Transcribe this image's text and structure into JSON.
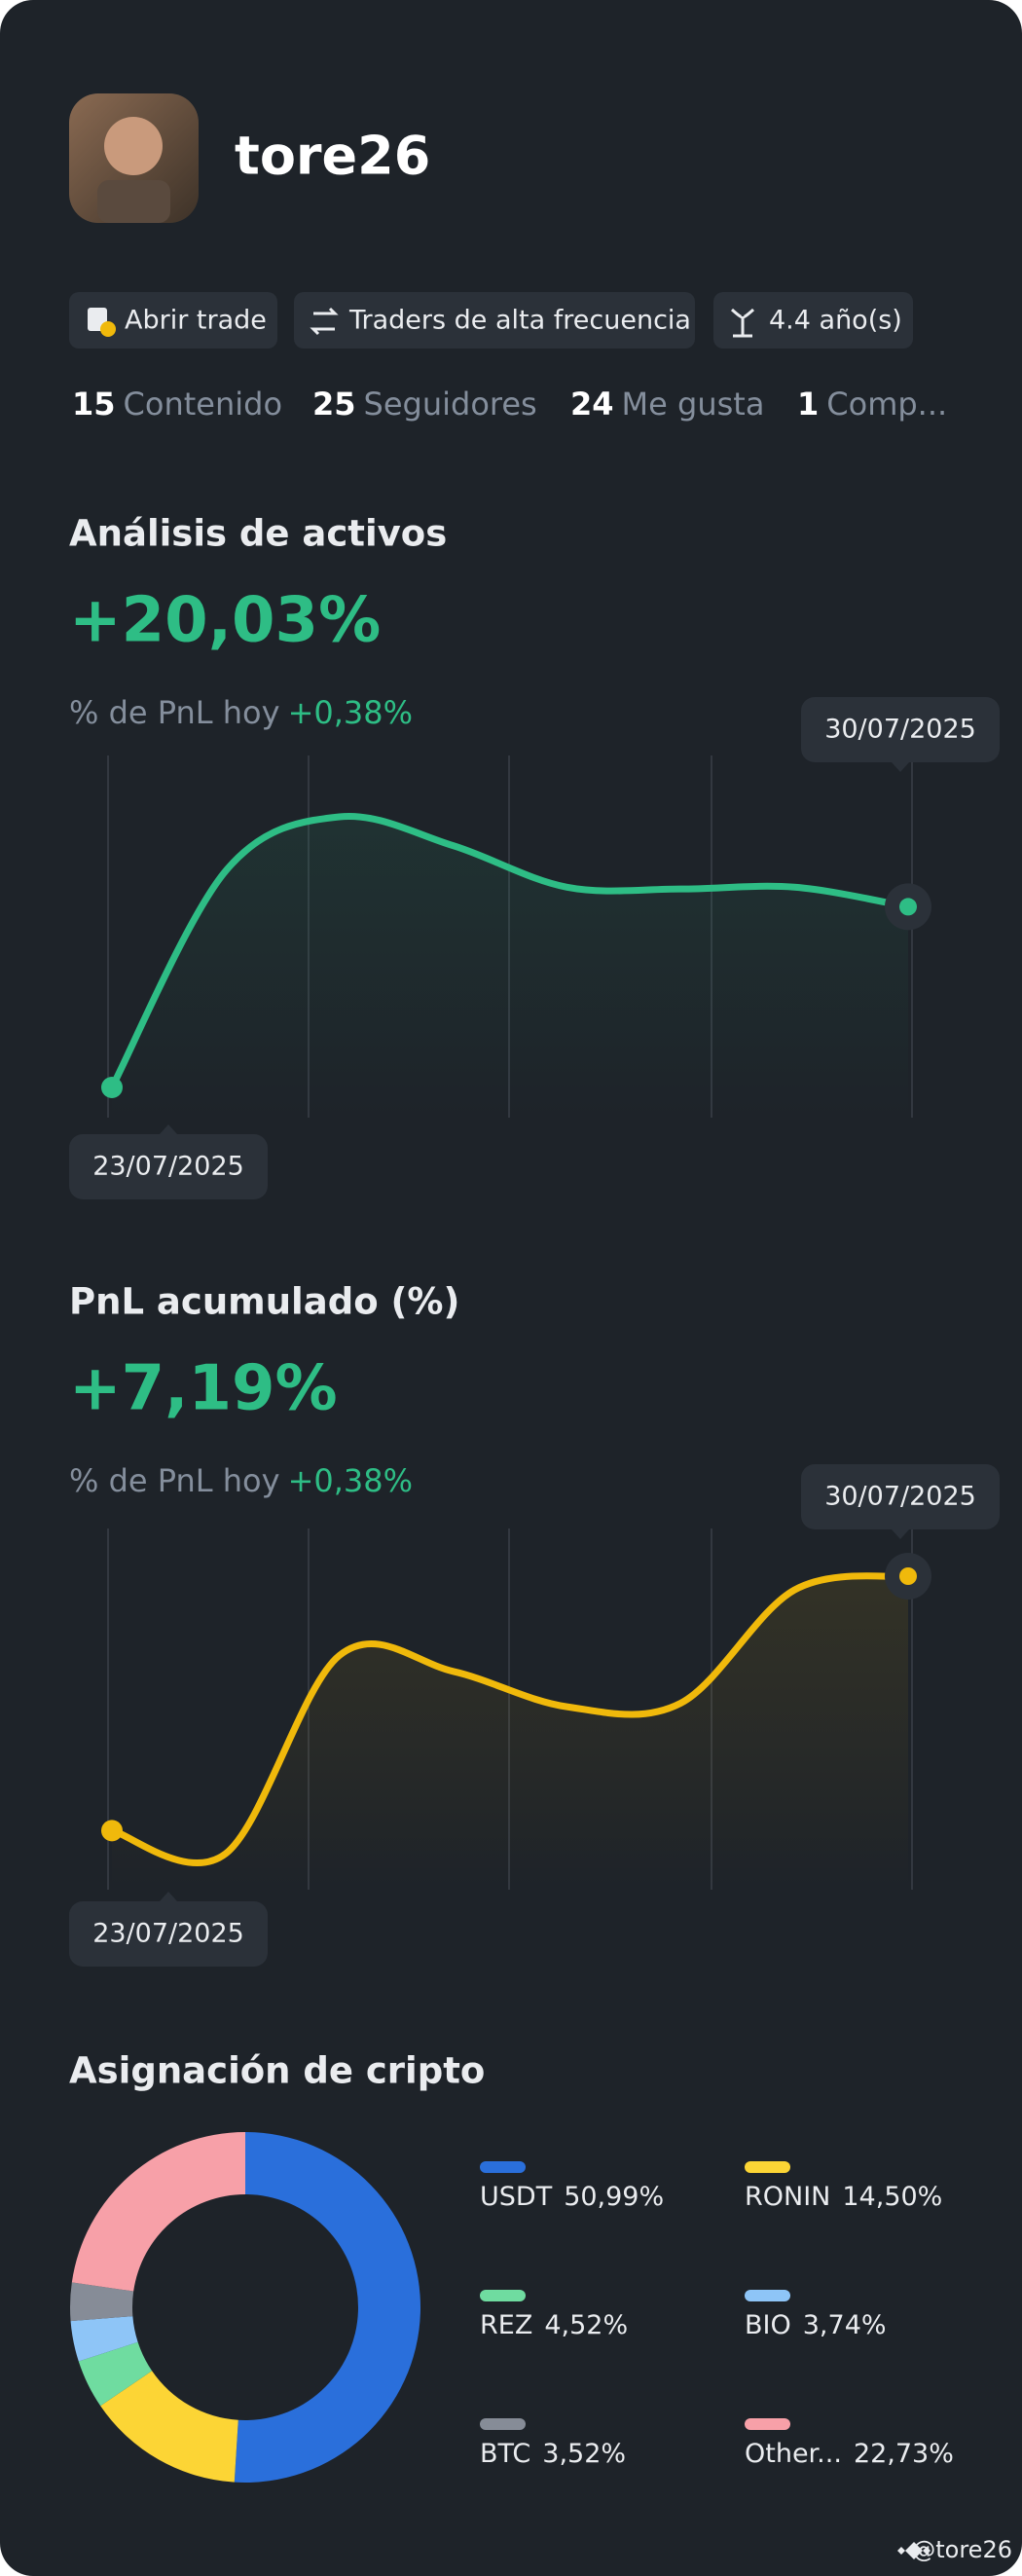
{
  "profile": {
    "username": "tore26",
    "tags": [
      "Abrir trade",
      "Traders de alta frecuencia",
      "4.4 año(s)"
    ],
    "stats": [
      {
        "value": 15,
        "label": "Contenido"
      },
      {
        "value": 25,
        "label": "Seguidores"
      },
      {
        "value": 24,
        "label": "Me gusta"
      },
      {
        "value": 1,
        "label": "Comp..."
      }
    ]
  },
  "chart_data": [
    {
      "type": "line",
      "title": "Análisis de activos",
      "headline": "+20,03%",
      "subtitle": "% de PnL hoy",
      "subtitle_value": "+0,38%",
      "categories": [
        "23/07/2025",
        null,
        null,
        null,
        null,
        null,
        null,
        "30/07/2025"
      ],
      "series": [
        {
          "color": "#2ebd85",
          "values": [
            0,
            24,
            30,
            26.8,
            22.2,
            22,
            22.2,
            20.03
          ]
        }
      ]
    },
    {
      "type": "line",
      "title": "PnL acumulado (%)",
      "headline": "+7,19%",
      "subtitle": "% de PnL hoy",
      "subtitle_value": "+0,38%",
      "categories": [
        "23/07/2025",
        null,
        null,
        null,
        null,
        null,
        null,
        "30/07/2025"
      ],
      "series": [
        {
          "color": "#f0b90b",
          "values": [
            0,
            -0.65,
            4.95,
            4.5,
            3.5,
            3.6,
            6.8,
            7.19
          ]
        }
      ]
    },
    {
      "type": "pie",
      "title": "Asignación de cripto",
      "categories": [
        "USDT",
        "RONIN",
        "REZ",
        "BIO",
        "BTC",
        "Other..."
      ],
      "values": [
        50.99,
        14.5,
        4.52,
        3.74,
        3.52,
        22.73
      ],
      "value_labels": [
        "50,99%",
        "14,50%",
        "4,52%",
        "3,74%",
        "3,52%",
        "22,73%"
      ],
      "colors": [
        "#2a6fdb",
        "#fcd535",
        "#6fdca0",
        "#8ec5f7",
        "#868c97",
        "#f7a0a8"
      ]
    }
  ],
  "footer": "@tore26"
}
